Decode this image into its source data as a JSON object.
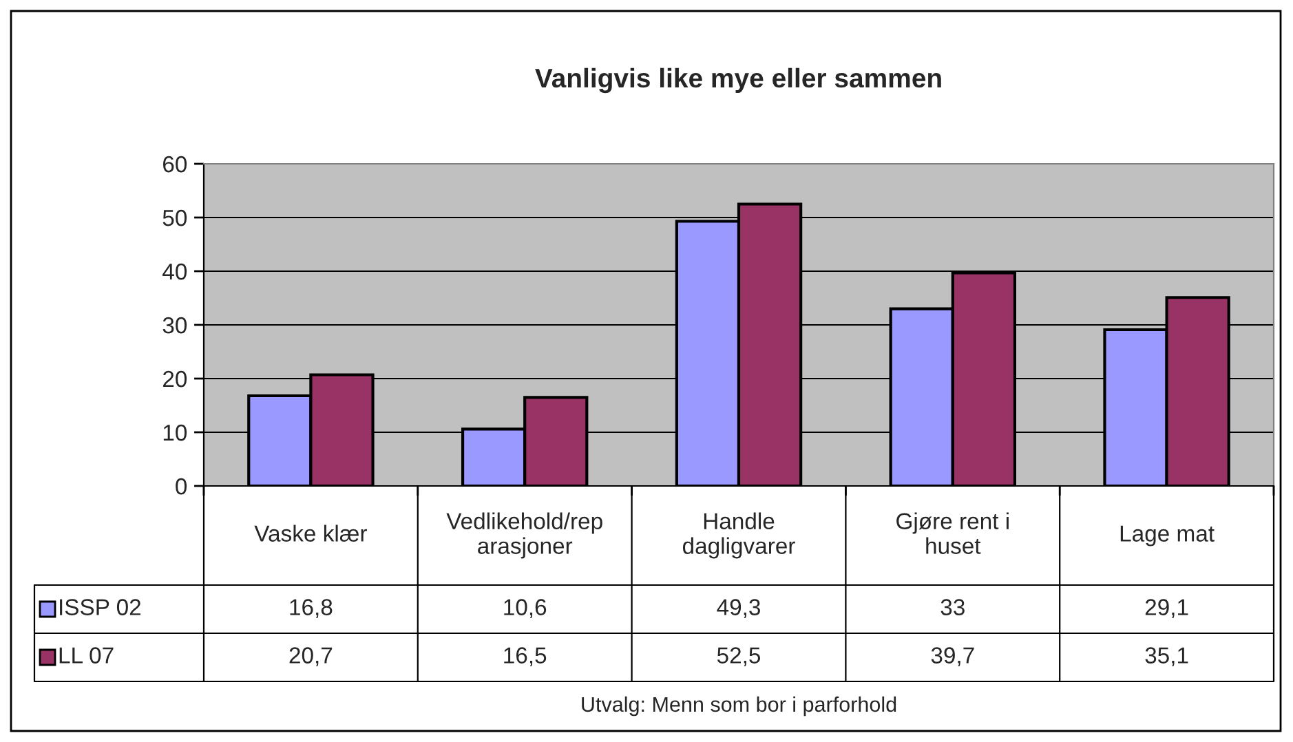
{
  "chart_data": {
    "type": "bar",
    "title": "Vanligvis like mye eller sammen",
    "categories": [
      "Vaske klær",
      "Vedlikehold/rep\narasjoner",
      "Handle\ndagligvarer",
      "Gjøre rent i\nhuset",
      "Lage mat"
    ],
    "series": [
      {
        "name": "ISSP 02",
        "color": "#9999ff",
        "values": [
          16.8,
          10.6,
          49.3,
          33,
          29.1
        ],
        "value_labels": [
          "16,8",
          "10,6",
          "49,3",
          "33",
          "29,1"
        ]
      },
      {
        "name": "LL 07",
        "color": "#993366",
        "values": [
          20.7,
          16.5,
          52.5,
          39.7,
          35.1
        ],
        "value_labels": [
          "20,7",
          "16,5",
          "52,5",
          "39,7",
          "35,1"
        ]
      }
    ],
    "ylim": [
      0,
      60
    ],
    "yticks": [
      0,
      10,
      20,
      30,
      40,
      50,
      60
    ],
    "grid": "y",
    "legend": "bottom left",
    "annotations": [
      "Utvalg: Menn som bor i parforhold"
    ]
  }
}
